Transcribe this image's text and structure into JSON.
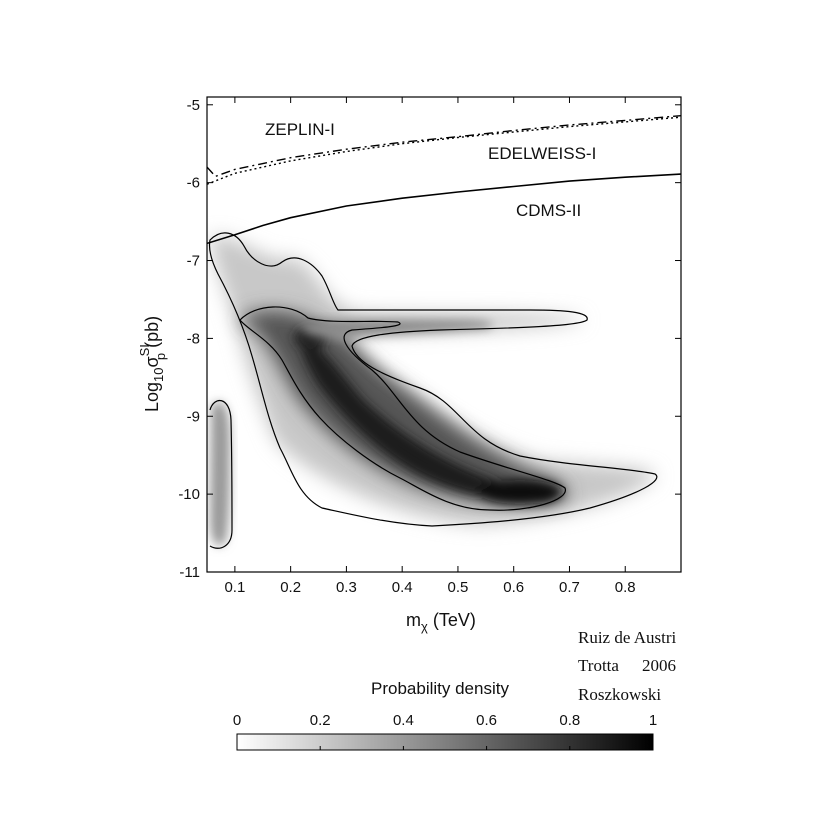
{
  "chart_data": {
    "type": "heatmap",
    "xlabel_base": "m",
    "xlabel_sub": "χ",
    "xlabel_unit": " (TeV)",
    "ylabel_base": "Log",
    "ylabel_sub1": "10",
    "ylabel_sigma": "σ",
    "ylabel_sup": "SI",
    "ylabel_sub2": "p",
    "ylabel_unit": " (pb)",
    "xlim": [
      0.05,
      0.9
    ],
    "ylim": [
      -11,
      -4.9
    ],
    "x_ticks": [
      "0.1",
      "0.2",
      "0.3",
      "0.4",
      "0.5",
      "0.6",
      "0.7",
      "0.8"
    ],
    "x_tick_values": [
      0.1,
      0.2,
      0.3,
      0.4,
      0.5,
      0.6,
      0.7,
      0.8
    ],
    "y_ticks": [
      "-5",
      "-6",
      "-7",
      "-8",
      "-9",
      "-10",
      "-11"
    ],
    "y_tick_values": [
      -5,
      -6,
      -7,
      -8,
      -9,
      -10,
      -11
    ],
    "limit_curves": [
      {
        "name": "ZEPLIN-I",
        "style": "dashdot",
        "points": [
          [
            0.05,
            -5.8
          ],
          [
            0.065,
            -5.92
          ],
          [
            0.1,
            -5.83
          ],
          [
            0.2,
            -5.68
          ],
          [
            0.3,
            -5.57
          ],
          [
            0.4,
            -5.48
          ],
          [
            0.5,
            -5.41
          ],
          [
            0.6,
            -5.33
          ],
          [
            0.7,
            -5.26
          ],
          [
            0.8,
            -5.2
          ],
          [
            0.9,
            -5.14
          ]
        ]
      },
      {
        "name": "EDELWEISS-I",
        "style": "dotted",
        "points": [
          [
            0.05,
            -6.02
          ],
          [
            0.1,
            -5.88
          ],
          [
            0.2,
            -5.72
          ],
          [
            0.3,
            -5.6
          ],
          [
            0.4,
            -5.5
          ],
          [
            0.5,
            -5.42
          ],
          [
            0.6,
            -5.35
          ],
          [
            0.7,
            -5.28
          ],
          [
            0.8,
            -5.22
          ],
          [
            0.9,
            -5.16
          ]
        ]
      },
      {
        "name": "CDMS-II",
        "style": "solid",
        "points": [
          [
            0.05,
            -6.78
          ],
          [
            0.1,
            -6.67
          ],
          [
            0.15,
            -6.55
          ],
          [
            0.2,
            -6.45
          ],
          [
            0.3,
            -6.3
          ],
          [
            0.4,
            -6.2
          ],
          [
            0.5,
            -6.12
          ],
          [
            0.6,
            -6.05
          ],
          [
            0.7,
            -5.98
          ],
          [
            0.8,
            -5.93
          ],
          [
            0.9,
            -5.89
          ]
        ]
      }
    ],
    "density_peaks": [
      {
        "x": 0.23,
        "y": -8.0,
        "value": 0.9
      },
      {
        "x": 0.3,
        "y": -8.8,
        "value": 0.85
      },
      {
        "x": 0.55,
        "y": -10.0,
        "value": 1.0
      },
      {
        "x": 0.45,
        "y": -7.85,
        "value": 0.35
      },
      {
        "x": 0.1,
        "y": -7.2,
        "value": 0.35
      },
      {
        "x": 0.07,
        "y": -10.3,
        "value": 0.4
      }
    ],
    "credits": [
      "Ruiz de Austri",
      "Trotta",
      "2006",
      "Roszkowski"
    ],
    "colorbar": {
      "label": "Probability density",
      "ticks": [
        "0",
        "0.2",
        "0.4",
        "0.6",
        "0.8",
        "1"
      ],
      "tick_values": [
        0,
        0.2,
        0.4,
        0.6,
        0.8,
        1
      ],
      "range": [
        0,
        1
      ],
      "colormap": "grayscale, white to black"
    }
  }
}
